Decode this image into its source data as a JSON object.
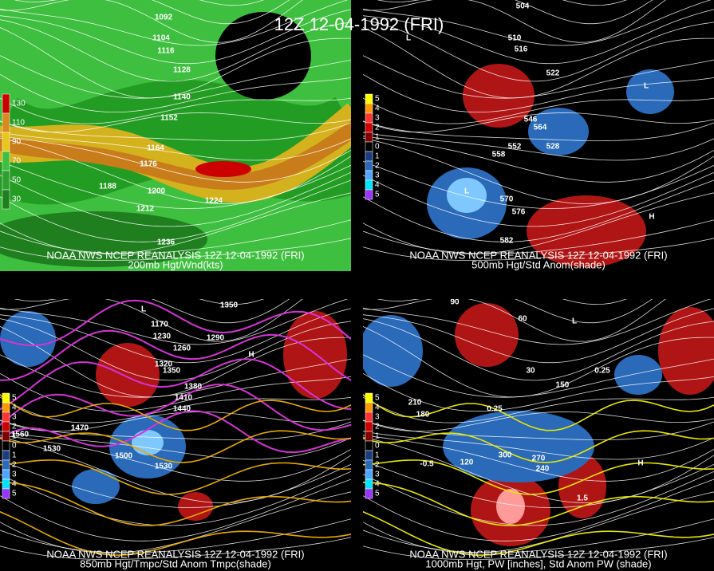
{
  "title": "12Z 12-04-1992 (FRI)",
  "panels": [
    {
      "caption": "NOAA NWS NCEP REANALYSIS 12Z 12-04-1992 (FRI)",
      "subtitle": "200mb Hgt/Wnd(kts)",
      "legend": [
        "130",
        "110",
        "90",
        "70",
        "50",
        "30"
      ],
      "labels": [
        "1092",
        "1104",
        "1116",
        "1128",
        "1140",
        "1152",
        "1164",
        "1176",
        "1188",
        "1200",
        "1212",
        "1224",
        "1236"
      ]
    },
    {
      "caption": "NOAA NWS NCEP REANALYSIS 12Z 12-04-1992 (FRI)",
      "subtitle": "500mb Hgt/Std Anom(shade)",
      "legend": [
        "5",
        "4",
        "3",
        "2",
        "1",
        "0",
        "1",
        "2",
        "3",
        "4",
        "5"
      ],
      "labels": [
        "504",
        "510",
        "516",
        "522",
        "546",
        "564",
        "552",
        "558",
        "528",
        "570",
        "576",
        "582",
        "L",
        "L",
        "H",
        "L"
      ]
    },
    {
      "caption": "NOAA NWS NCEP REANALYSIS 12Z 12-04-1992 (FRI)",
      "subtitle": "850mb Hgt/Tmpc/Std Anom Tmpc(shade)",
      "legend": [
        "5",
        "4",
        "3",
        "2",
        "1",
        "0",
        "1",
        "2",
        "3",
        "4",
        "5"
      ],
      "labels": [
        "1170",
        "1230",
        "1260",
        "1290",
        "1320",
        "1350",
        "1380",
        "1410",
        "1440",
        "1470",
        "1500",
        "1530",
        "1560",
        "1530",
        "1350",
        "H",
        "L"
      ]
    },
    {
      "caption": "NOAA NWS NCEP REANALYSIS 12Z 12-04-1992 (FRI)",
      "subtitle": "1000mb Hgt, PW [inches], Std Anom PW (shade)",
      "legend": [
        "5",
        "4",
        "3",
        "2",
        "1",
        "0",
        "1",
        "2",
        "3",
        "4",
        "5"
      ],
      "labels": [
        "90",
        "60",
        "30",
        "150",
        "210",
        "180",
        "120",
        "270",
        "240",
        "300",
        "0.25",
        "-0.5",
        "1.5",
        "0.25",
        "H",
        "L"
      ]
    }
  ]
}
